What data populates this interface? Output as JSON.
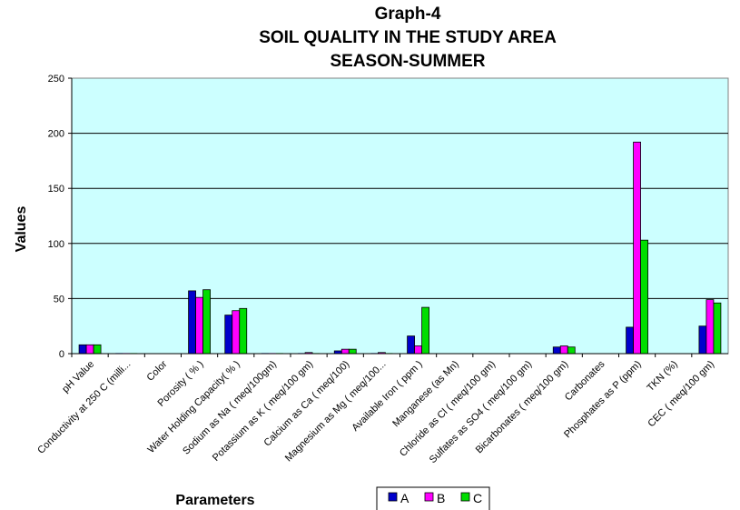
{
  "chart_data": {
    "type": "bar",
    "title_lines": [
      "Graph-4",
      "SOIL QUALITY IN THE STUDY AREA",
      "SEASON-SUMMER"
    ],
    "xlabel": "Parameters",
    "ylabel": "Values",
    "ylim": [
      0,
      250
    ],
    "yticks": [
      "0",
      "50",
      "100",
      "150",
      "200",
      "250"
    ],
    "grid": true,
    "legend_position": "bottom-center",
    "plot_background": "#ccffff",
    "categories": [
      "pH Value",
      "Conductivity at 250 C (milli...",
      "Color",
      "Porosity ( % )",
      "Water Holding Capacity( % )",
      "Sodium as Na  ( meq/100gm)",
      "Potassium as K ( meq/100 gm)",
      "Calcium as Ca ( meq/100)",
      "Magnesium as Mg  ( meq/100...",
      "Available Iron ( ppm )",
      "Manganese (as Mn)",
      "Chloride as Cl  ( meq/100 gm)",
      "Sulfates as SO4   ( meq/100 gm)",
      "Bicarbonates ( meq/100 gm)",
      "Carbonates",
      "Phosphates as P  (ppm)",
      "TKN (%)",
      "CEC  ( meq/100 gm)"
    ],
    "series": [
      {
        "name": "A",
        "color": "#0000cc",
        "values": [
          8,
          0.5,
          0,
          57,
          35,
          0.5,
          0.5,
          2.5,
          0.5,
          16,
          0,
          0.2,
          0.2,
          6,
          0,
          24,
          0.1,
          25
        ]
      },
      {
        "name": "B",
        "color": "#ff00ff",
        "values": [
          8,
          0.5,
          0,
          51,
          39,
          0.5,
          1,
          4,
          1,
          7,
          0,
          0.2,
          0.2,
          7,
          0,
          192,
          0.1,
          49
        ]
      },
      {
        "name": "C",
        "color": "#00dd00",
        "values": [
          8,
          0.5,
          0,
          58,
          41,
          0.5,
          0.5,
          4,
          0.5,
          42,
          0,
          0.2,
          0.2,
          6,
          0,
          103,
          0.1,
          46
        ]
      }
    ]
  }
}
